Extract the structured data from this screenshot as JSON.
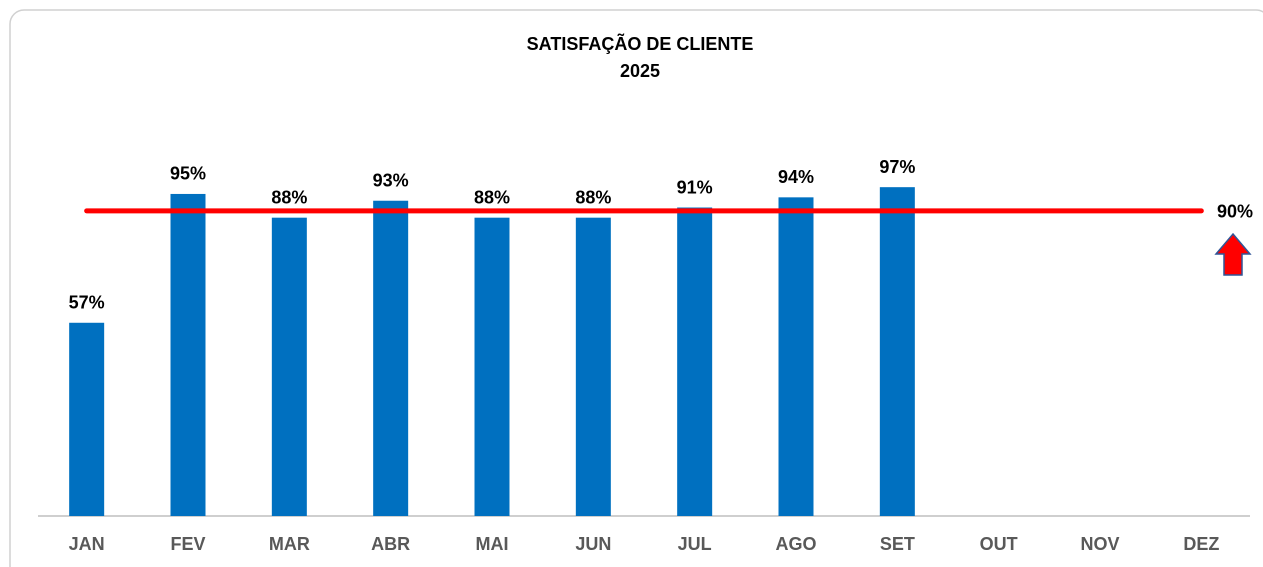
{
  "chart_data": {
    "type": "bar",
    "title": "SATISFAÇÃO DE CLIENTE",
    "subtitle": "2025",
    "categories": [
      "JAN",
      "FEV",
      "MAR",
      "ABR",
      "MAI",
      "JUN",
      "JUL",
      "AGO",
      "SET",
      "OUT",
      "NOV",
      "DEZ"
    ],
    "values": [
      57,
      95,
      88,
      93,
      88,
      88,
      91,
      94,
      97,
      null,
      null,
      null
    ],
    "value_labels": [
      "57%",
      "95%",
      "88%",
      "93%",
      "88%",
      "88%",
      "91%",
      "94%",
      "97%",
      null,
      null,
      null
    ],
    "color": "#0070c0",
    "target": {
      "value": 90,
      "label": "90%",
      "color": "#ff0000"
    },
    "ylim": [
      0,
      100
    ]
  }
}
